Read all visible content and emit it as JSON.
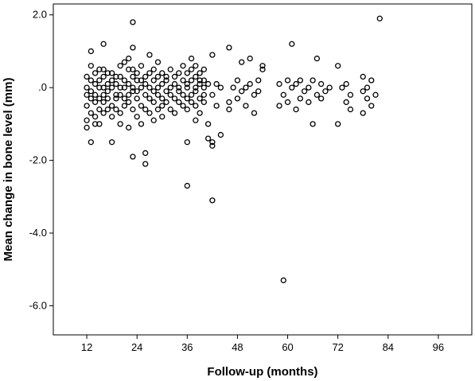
{
  "chart_data": {
    "type": "scatter",
    "xlabel": "Follow-up (months)",
    "ylabel": "Mean change in bone level (mm)",
    "xlim": [
      4,
      104
    ],
    "ylim": [
      -6.8,
      2.3
    ],
    "xticks": [
      12,
      24,
      36,
      48,
      60,
      72,
      84,
      96
    ],
    "yticks": [
      2.0,
      0.0,
      -2.0,
      -4.0,
      -6.0
    ],
    "ytick_labels": [
      "2.0",
      ".0",
      "-2.0",
      "-4.0",
      "-6.0"
    ],
    "grid": false,
    "marker": "open-circle",
    "marker_color": "#000000",
    "series": [
      {
        "points": [
          [
            12,
            0.0
          ],
          [
            12,
            -0.2
          ],
          [
            12,
            -0.5
          ],
          [
            12,
            -0.9
          ],
          [
            12,
            -1.1
          ],
          [
            12,
            0.3
          ],
          [
            13,
            -0.3
          ],
          [
            13,
            -0.7
          ],
          [
            13,
            1.0
          ],
          [
            13,
            0.2
          ],
          [
            13,
            -1.5
          ],
          [
            13,
            0.6
          ],
          [
            13,
            -0.1
          ],
          [
            14,
            -0.8
          ],
          [
            14,
            -0.4
          ],
          [
            14,
            0.1
          ],
          [
            14,
            -1.0
          ],
          [
            14,
            0.4
          ],
          [
            14,
            -0.2
          ],
          [
            15,
            -0.6
          ],
          [
            15,
            0.0
          ],
          [
            15,
            0.5
          ],
          [
            15,
            -0.3
          ],
          [
            15,
            -1.0
          ],
          [
            15,
            0.2
          ],
          [
            16,
            1.2
          ],
          [
            16,
            -0.4
          ],
          [
            16,
            0.3
          ],
          [
            16,
            -0.7
          ],
          [
            16,
            0.0
          ],
          [
            16,
            -0.2
          ],
          [
            16,
            0.5
          ],
          [
            17,
            -0.1
          ],
          [
            17,
            0.4
          ],
          [
            17,
            -0.6
          ],
          [
            17,
            0.1
          ],
          [
            17,
            -0.3
          ],
          [
            18,
            -1.5
          ],
          [
            18,
            0.2
          ],
          [
            18,
            -0.5
          ],
          [
            18,
            0.0
          ],
          [
            18,
            0.4
          ],
          [
            18,
            -0.8
          ],
          [
            19,
            -0.2
          ],
          [
            19,
            0.3
          ],
          [
            19,
            -0.6
          ],
          [
            19,
            -0.3
          ],
          [
            19,
            0.1
          ],
          [
            20,
            0.3
          ],
          [
            20,
            -0.2
          ],
          [
            20,
            -0.7
          ],
          [
            20,
            0.0
          ],
          [
            20,
            0.6
          ],
          [
            20,
            -1.0
          ],
          [
            21,
            0.7
          ],
          [
            21,
            -0.3
          ],
          [
            21,
            0.2
          ],
          [
            21,
            -0.5
          ],
          [
            21,
            0.0
          ],
          [
            22,
            -0.4
          ],
          [
            22,
            0.5
          ],
          [
            22,
            -1.1
          ],
          [
            22,
            0.1
          ],
          [
            22,
            -0.2
          ],
          [
            22,
            0.8
          ],
          [
            23,
            1.8
          ],
          [
            23,
            0.3
          ],
          [
            23,
            -0.1
          ],
          [
            23,
            -0.6
          ],
          [
            23,
            -1.9
          ],
          [
            23,
            0.5
          ],
          [
            23,
            1.1
          ],
          [
            23,
            0.0
          ],
          [
            24,
            -0.3
          ],
          [
            24,
            0.2
          ],
          [
            24,
            -0.8
          ],
          [
            24,
            0.4
          ],
          [
            24,
            -0.1
          ],
          [
            25,
            0.0
          ],
          [
            25,
            -0.5
          ],
          [
            25,
            0.6
          ],
          [
            25,
            -1.0
          ],
          [
            25,
            0.2
          ],
          [
            26,
            -0.2
          ],
          [
            26,
            0.3
          ],
          [
            26,
            -1.8
          ],
          [
            26,
            -2.1
          ],
          [
            26,
            0.1
          ],
          [
            26,
            -0.6
          ],
          [
            27,
            0.4
          ],
          [
            27,
            -0.3
          ],
          [
            27,
            0.0
          ],
          [
            27,
            -0.7
          ],
          [
            27,
            0.9
          ],
          [
            28,
            0.5
          ],
          [
            28,
            -0.1
          ],
          [
            28,
            -0.4
          ],
          [
            28,
            0.2
          ],
          [
            28,
            -0.9
          ],
          [
            29,
            0.7
          ],
          [
            29,
            -0.2
          ],
          [
            29,
            0.3
          ],
          [
            29,
            -0.6
          ],
          [
            29,
            0.0
          ],
          [
            30,
            -0.3
          ],
          [
            30,
            0.4
          ],
          [
            30,
            -0.8
          ],
          [
            30,
            0.1
          ],
          [
            30,
            -0.5
          ],
          [
            31,
            0.2
          ],
          [
            31,
            -0.1
          ],
          [
            31,
            -0.4
          ],
          [
            31,
            0.3
          ],
          [
            32,
            0.0
          ],
          [
            32,
            -0.6
          ],
          [
            32,
            0.5
          ],
          [
            32,
            -0.2
          ],
          [
            33,
            0.3
          ],
          [
            33,
            -0.3
          ],
          [
            33,
            0.1
          ],
          [
            33,
            -0.7
          ],
          [
            34,
            -0.1
          ],
          [
            34,
            0.4
          ],
          [
            34,
            -0.4
          ],
          [
            34,
            0.0
          ],
          [
            35,
            0.2
          ],
          [
            35,
            -0.2
          ],
          [
            35,
            0.6
          ],
          [
            35,
            -0.5
          ],
          [
            36,
            -2.7
          ],
          [
            36,
            0.1
          ],
          [
            36,
            -0.3
          ],
          [
            36,
            0.4
          ],
          [
            36,
            -1.5
          ],
          [
            36,
            0.0
          ],
          [
            36,
            -0.6
          ],
          [
            37,
            0.5
          ],
          [
            37,
            -0.2
          ],
          [
            37,
            0.2
          ],
          [
            37,
            -0.4
          ],
          [
            37,
            0.8
          ],
          [
            38,
            -0.1
          ],
          [
            38,
            0.3
          ],
          [
            38,
            -0.5
          ],
          [
            38,
            0.0
          ],
          [
            38,
            -0.9
          ],
          [
            38,
            0.6
          ],
          [
            39,
            0.2
          ],
          [
            39,
            -0.3
          ],
          [
            39,
            0.4
          ],
          [
            39,
            -0.7
          ],
          [
            39,
            0.1
          ],
          [
            40,
            -0.2
          ],
          [
            40,
            0.5
          ],
          [
            40,
            -0.4
          ],
          [
            40,
            0.0
          ],
          [
            40,
            0.2
          ],
          [
            41,
            -1.0
          ],
          [
            41,
            -1.4
          ],
          [
            41,
            0.1
          ],
          [
            42,
            -3.1
          ],
          [
            42,
            -1.6
          ],
          [
            42,
            -1.5
          ],
          [
            42,
            0.9
          ],
          [
            42,
            -0.2
          ],
          [
            43,
            0.1
          ],
          [
            43,
            -0.5
          ],
          [
            44,
            -1.3
          ],
          [
            44,
            0.0
          ],
          [
            46,
            1.1
          ],
          [
            46,
            -0.4
          ],
          [
            46,
            -0.6
          ],
          [
            47,
            0.0
          ],
          [
            48,
            0.2
          ],
          [
            48,
            -0.3
          ],
          [
            49,
            0.7
          ],
          [
            49,
            -0.1
          ],
          [
            50,
            0.0
          ],
          [
            50,
            -0.5
          ],
          [
            51,
            0.8
          ],
          [
            51,
            0.1
          ],
          [
            52,
            -0.2
          ],
          [
            52,
            -0.7
          ],
          [
            53,
            0.2
          ],
          [
            53,
            -0.1
          ],
          [
            54,
            0.5
          ],
          [
            54,
            0.6
          ],
          [
            58,
            -0.5
          ],
          [
            58,
            0.1
          ],
          [
            59,
            -5.3
          ],
          [
            59,
            -0.2
          ],
          [
            60,
            0.2
          ],
          [
            60,
            -0.4
          ],
          [
            61,
            1.2
          ],
          [
            61,
            0.0
          ],
          [
            62,
            -0.6
          ],
          [
            62,
            0.1
          ],
          [
            63,
            -0.3
          ],
          [
            63,
            0.2
          ],
          [
            64,
            -0.1
          ],
          [
            65,
            -0.4
          ],
          [
            65,
            0.0
          ],
          [
            66,
            -1.0
          ],
          [
            66,
            0.2
          ],
          [
            67,
            0.8
          ],
          [
            67,
            -0.2
          ],
          [
            68,
            -0.3
          ],
          [
            68,
            0.1
          ],
          [
            69,
            -0.1
          ],
          [
            70,
            0.0
          ],
          [
            72,
            0.6
          ],
          [
            72,
            -1.0
          ],
          [
            73,
            0.0
          ],
          [
            74,
            -0.4
          ],
          [
            74,
            0.1
          ],
          [
            75,
            -0.6
          ],
          [
            75,
            -0.2
          ],
          [
            78,
            0.3
          ],
          [
            78,
            -0.7
          ],
          [
            78,
            -0.1
          ],
          [
            79,
            0.0
          ],
          [
            79,
            -0.3
          ],
          [
            80,
            0.2
          ],
          [
            80,
            -0.5
          ],
          [
            81,
            -0.2
          ],
          [
            82,
            1.9
          ]
        ]
      }
    ]
  }
}
